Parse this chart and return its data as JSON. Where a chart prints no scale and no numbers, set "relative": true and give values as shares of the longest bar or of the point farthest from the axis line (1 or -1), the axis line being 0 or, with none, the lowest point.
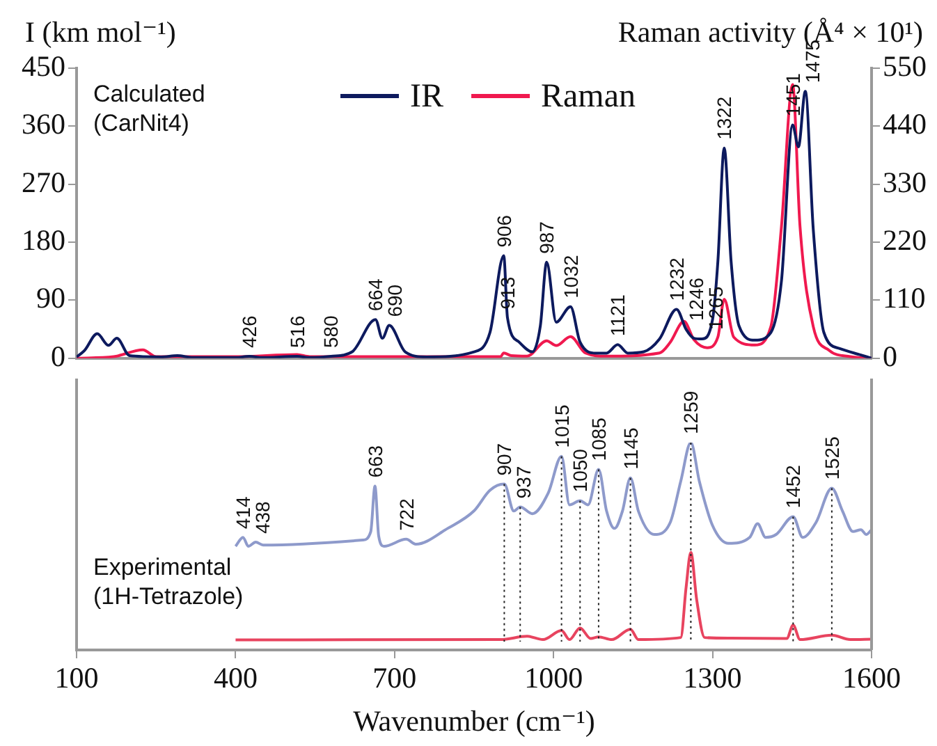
{
  "chart_data": [
    {
      "type": "line",
      "ylabel": "I (km mol⁻¹)",
      "y2label": "Raman activity (Å⁴ × 10¹)",
      "xlim": [
        100,
        1600
      ],
      "ylim": [
        0,
        450
      ],
      "yticks": [
        0,
        90,
        180,
        270,
        360,
        450
      ],
      "y2lim": [
        0,
        550
      ],
      "y2ticks": [
        0,
        110,
        220,
        330,
        440,
        550
      ],
      "tick_labels": "y",
      "grid": false,
      "legend": "top",
      "marker": "none",
      "line_style": "solid",
      "series": [
        {
          "name": "IR",
          "color": "#0d1a5e",
          "axis": "y",
          "x": [
            100,
            115,
            139,
            160,
            176,
            200,
            260,
            290,
            320,
            400,
            426,
            450,
            516,
            540,
            580,
            620,
            664,
            677,
            690,
            720,
            760,
            850,
            880,
            906,
            913,
            935,
            960,
            975,
            987,
            1005,
            1032,
            1050,
            1080,
            1100,
            1121,
            1140,
            1170,
            1200,
            1232,
            1250,
            1265,
            1280,
            1300,
            1310,
            1322,
            1335,
            1350,
            1380,
            1410,
            1430,
            1451,
            1462,
            1475,
            1490,
            1510,
            1540,
            1580,
            1600
          ],
          "values": [
            2,
            12,
            38,
            20,
            31,
            4,
            2,
            4,
            1,
            1,
            3,
            1,
            3,
            1,
            3,
            10,
            60,
            31,
            51,
            10,
            2,
            10,
            40,
            159,
            63,
            25,
            10,
            50,
            149,
            56,
            80,
            25,
            8,
            8,
            21,
            8,
            10,
            30,
            76,
            45,
            31,
            30,
            60,
            150,
            326,
            150,
            50,
            28,
            40,
            120,
            362,
            328,
            414,
            200,
            40,
            15,
            5,
            0
          ]
        },
        {
          "name": "Raman",
          "color": "#f0194f",
          "axis": "y2",
          "x": [
            100,
            170,
            225,
            250,
            400,
            516,
            540,
            900,
            906,
            920,
            950,
            987,
            1005,
            1032,
            1060,
            1100,
            1200,
            1220,
            1246,
            1265,
            1290,
            1310,
            1322,
            1340,
            1380,
            1410,
            1430,
            1451,
            1465,
            1490,
            1520,
            1560,
            1600
          ],
          "values": [
            0,
            3,
            16,
            3,
            3,
            7,
            3,
            3,
            10,
            5,
            4,
            33,
            24,
            41,
            10,
            4,
            10,
            30,
            70,
            35,
            20,
            40,
            112,
            40,
            25,
            60,
            250,
            519,
            250,
            60,
            15,
            3,
            0
          ]
        }
      ],
      "annotations": [
        "Calculated\n(CarNit4)",
        {
          "text": "426",
          "x": 426,
          "y": 3
        },
        {
          "text": "516",
          "x": 516,
          "y": 3
        },
        {
          "text": "580",
          "x": 580,
          "y": 3
        },
        {
          "text": "664",
          "x": 664,
          "y": 60
        },
        {
          "text": "690",
          "x": 690,
          "y": 51
        },
        {
          "text": "906",
          "x": 906,
          "y": 159
        },
        {
          "text": "913",
          "x": 913,
          "y": 63
        },
        {
          "text": "987",
          "x": 987,
          "y": 149
        },
        {
          "text": "1032",
          "x": 1032,
          "y": 80
        },
        {
          "text": "1121",
          "x": 1121,
          "y": 21
        },
        {
          "text": "1232",
          "x": 1232,
          "y": 76
        },
        {
          "text": "1246",
          "x": 1246,
          "y": 45
        },
        {
          "text": "1265",
          "x": 1265,
          "y": 31
        },
        {
          "text": "1322",
          "x": 1322,
          "y": 326
        },
        {
          "text": "1451",
          "x": 1451,
          "y": 362
        },
        {
          "text": "1475",
          "x": 1475,
          "y": 414
        }
      ]
    },
    {
      "type": "line",
      "xlabel": "Wavenumber (cm⁻¹)",
      "xlim": [
        100,
        1600
      ],
      "xticks": [
        100,
        400,
        700,
        1000,
        1300,
        1600
      ],
      "relative": true,
      "tick_labels": "x",
      "grid": false,
      "marker": "none",
      "line_style": "solid",
      "series": [
        {
          "color": "#8e9acb",
          "x": [
            400,
            414,
            424,
            438,
            452,
            640,
            655,
            663,
            670,
            680,
            722,
            740,
            800,
            850,
            880,
            907,
            925,
            937,
            960,
            990,
            1015,
            1030,
            1050,
            1065,
            1085,
            1100,
            1115,
            1130,
            1145,
            1160,
            1190,
            1220,
            1240,
            1259,
            1275,
            1300,
            1330,
            1370,
            1385,
            1400,
            1420,
            1452,
            1470,
            1495,
            1525,
            1545,
            1565,
            1580,
            1590,
            1600
          ],
          "values": [
            0.5,
            0.543,
            0.5,
            0.52,
            0.506,
            0.53,
            0.57,
            0.79,
            0.55,
            0.5,
            0.534,
            0.51,
            0.586,
            0.671,
            0.77,
            0.8,
            0.67,
            0.69,
            0.657,
            0.757,
            0.934,
            0.7,
            0.72,
            0.7,
            0.871,
            0.67,
            0.586,
            0.67,
            0.83,
            0.67,
            0.557,
            0.614,
            0.814,
            1,
            0.814,
            0.6,
            0.514,
            0.543,
            0.609,
            0.543,
            0.557,
            0.643,
            0.543,
            0.614,
            0.78,
            0.671,
            0.571,
            0.58,
            0.557,
            0.58
          ]
        },
        {
          "color": "#e8445f",
          "x": [
            400,
            900,
            950,
            980,
            1015,
            1030,
            1050,
            1070,
            1085,
            1110,
            1145,
            1160,
            1240,
            1250,
            1259,
            1270,
            1285,
            1330,
            1440,
            1452,
            1465,
            1525,
            1560,
            1600
          ],
          "values": [
            0.049,
            0.05,
            0.066,
            0.05,
            0.094,
            0.05,
            0.106,
            0.055,
            0.063,
            0.05,
            0.1,
            0.05,
            0.06,
            0.3,
            0.471,
            0.243,
            0.06,
            0.057,
            0.055,
            0.12,
            0.05,
            0.071,
            0.05,
            0.052
          ]
        }
      ],
      "ref_lines": [
        {
          "axis": "x",
          "value": 907,
          "line_style": "dotted"
        },
        {
          "axis": "x",
          "value": 937,
          "line_style": "dotted"
        },
        {
          "axis": "x",
          "value": 1015,
          "line_style": "dotted"
        },
        {
          "axis": "x",
          "value": 1050,
          "line_style": "dotted"
        },
        {
          "axis": "x",
          "value": 1085,
          "line_style": "dotted"
        },
        {
          "axis": "x",
          "value": 1145,
          "line_style": "dotted"
        },
        {
          "axis": "x",
          "value": 1259,
          "line_style": "dotted"
        },
        {
          "axis": "x",
          "value": 1452,
          "line_style": "dotted"
        },
        {
          "axis": "x",
          "value": 1525,
          "line_style": "dotted"
        }
      ],
      "annotations": [
        "Experimental\n(1H-Tetrazole)",
        {
          "text": "414",
          "x": 414,
          "y": 0.543
        },
        {
          "text": "438",
          "x": 438,
          "y": 0.52
        },
        {
          "text": "663",
          "x": 663,
          "y": 0.79
        },
        {
          "text": "722",
          "x": 722,
          "y": 0.534
        },
        {
          "text": "907",
          "x": 907,
          "y": 0.8
        },
        {
          "text": "937",
          "x": 937,
          "y": 0.69
        },
        {
          "text": "1015",
          "x": 1015,
          "y": 0.934
        },
        {
          "text": "1050",
          "x": 1050,
          "y": 0.72
        },
        {
          "text": "1085",
          "x": 1085,
          "y": 0.871
        },
        {
          "text": "1145",
          "x": 1145,
          "y": 0.83
        },
        {
          "text": "1259",
          "x": 1259,
          "y": 1
        },
        {
          "text": "1452",
          "x": 1452,
          "y": 0.643
        },
        {
          "text": "1525",
          "x": 1525,
          "y": 0.78
        }
      ]
    }
  ]
}
